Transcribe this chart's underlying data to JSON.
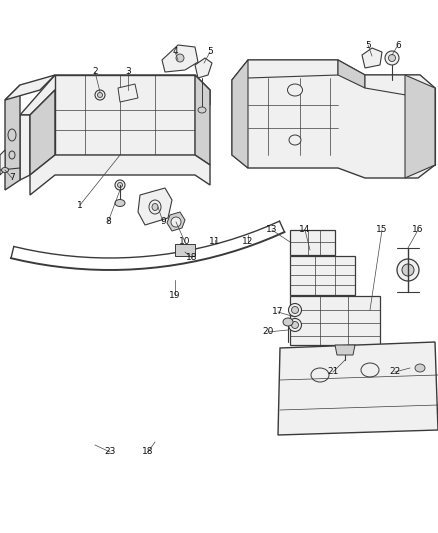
{
  "bg_color": "#ffffff",
  "line_color": "#4a4a4a",
  "fig_width": 4.38,
  "fig_height": 5.33,
  "dpi": 100,
  "label_fontsize": 6.5,
  "callout_color": "#444444",
  "part_fill": "#f0f0f0",
  "part_fill_dark": "#d0d0d0",
  "part_stroke": "#3a3a3a"
}
